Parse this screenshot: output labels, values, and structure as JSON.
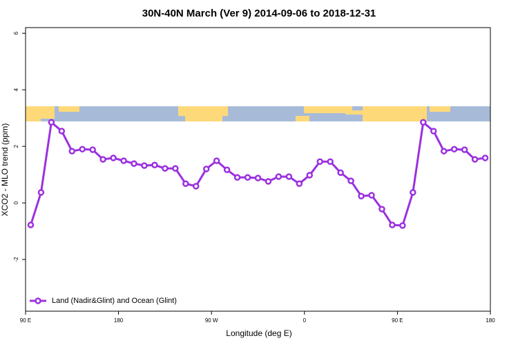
{
  "chart_data": {
    "type": "line",
    "title": "30N-40N March (Ver 9)   2014-09-06 to 2018-12-31",
    "x_label": "Longitude (deg E)",
    "y_label": "XCO2 - MLO trend (ppm)",
    "x": [
      95,
      105,
      115,
      125,
      135,
      145,
      155,
      165,
      175,
      185,
      195,
      205,
      215,
      225,
      235,
      245,
      255,
      265,
      275,
      285,
      295,
      305,
      315,
      325,
      335,
      345,
      355,
      365,
      375,
      385,
      395,
      405,
      415,
      425,
      435,
      445,
      455,
      465,
      475,
      485,
      495,
      505,
      515,
      525,
      535
    ],
    "series": [
      {
        "name": "Land (Nadir&Glint) and Ocean (Glint)",
        "color": "#9b30e0",
        "values": [
          -0.78,
          0.37,
          2.85,
          2.54,
          1.83,
          1.9,
          1.88,
          1.54,
          1.59,
          1.49,
          1.39,
          1.32,
          1.34,
          1.22,
          1.22,
          0.68,
          0.59,
          1.2,
          1.49,
          1.17,
          0.9,
          0.9,
          0.88,
          0.76,
          0.93,
          0.93,
          0.68,
          0.98,
          1.46,
          1.46,
          1.07,
          0.78,
          0.24,
          0.27,
          -0.22,
          -0.78,
          -0.8,
          0.37,
          2.85,
          2.54,
          1.83,
          1.9,
          1.88,
          1.54,
          1.59
        ]
      }
    ],
    "xlim": [
      90,
      540
    ],
    "xticks": [
      {
        "value": 90,
        "label": "90 E"
      },
      180,
      {
        "value": 270,
        "label": "90 W"
      },
      {
        "value": 360,
        "label": "0"
      },
      {
        "value": 450,
        "label": "90 E"
      },
      {
        "value": 540,
        "label": "180"
      }
    ],
    "ylim": [
      -3.83,
      6.2
    ],
    "yticks": [
      -2,
      0,
      2,
      4,
      6
    ],
    "grid": false,
    "legend": "bottom-left"
  }
}
